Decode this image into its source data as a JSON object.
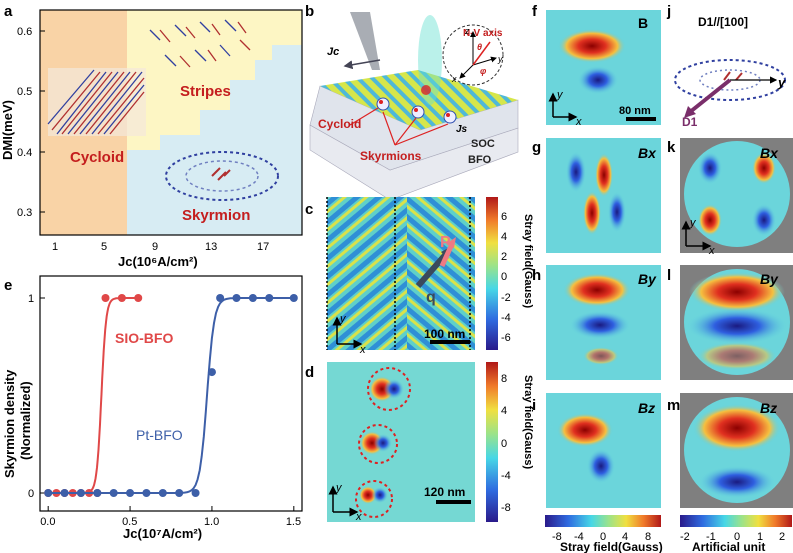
{
  "panels": {
    "a": "a",
    "b": "b",
    "c": "c",
    "d": "d",
    "e": "e",
    "f": "f",
    "g": "g",
    "h": "h",
    "i": "i",
    "j": "j",
    "k": "k",
    "l": "l",
    "m": "m"
  },
  "phase_diagram": {
    "ylabel": "DMI(meV)",
    "xlabel": "Jc(10⁶A/cm²)",
    "yticks": [
      "0.3",
      "0.4",
      "0.5",
      "0.6"
    ],
    "xticks": [
      "1",
      "5",
      "9",
      "13",
      "17"
    ],
    "regions": [
      "Cycloid",
      "Stripes",
      "Skyrmion"
    ],
    "colors": {
      "cycloid": "#f9d3a6",
      "stripes": "#fdf6c4",
      "skyrmion": "#d7ecf3"
    }
  },
  "schematic": {
    "jc": "Jc",
    "js": "Js",
    "nv_axis": "N-V axis",
    "theta": "θ",
    "phi": "φ",
    "cycloid": "Cycloid",
    "skyrmions": "Skyrmions",
    "soc": "SOC",
    "bfo": "BFO",
    "axis_x": "x",
    "axis_y": "y",
    "axis_z": "z"
  },
  "map_c": {
    "colorbar_label": "Stray field(Gauss)",
    "ticks": [
      "6",
      "4",
      "2",
      "0",
      "-2",
      "-4",
      "-6"
    ],
    "scale": "100 nm",
    "p": "P",
    "q": "q"
  },
  "map_d": {
    "colorbar_label": "Stray field(Gauss)",
    "ticks": [
      "8",
      "4",
      "0",
      "-4",
      "-8"
    ],
    "scale": "120 nm"
  },
  "chart_data": {
    "type": "line",
    "xlabel": "Jc(10⁷A/cm²)",
    "ylabel": "Skyrmion density (Normalized)",
    "xlim": [
      -0.05,
      1.55
    ],
    "ylim": [
      0,
      1
    ],
    "xticks": [
      "0.0",
      "0.5",
      "1.0",
      "1.5"
    ],
    "yticks": [
      "0",
      "1"
    ],
    "series": [
      {
        "name": "SIO-BFO",
        "color": "#e04848",
        "x": [
          0,
          0.05,
          0.1,
          0.15,
          0.2,
          0.25,
          0.3,
          0.35,
          0.45,
          0.55
        ],
        "y": [
          0,
          0,
          0,
          0,
          0,
          0,
          0,
          1,
          1,
          1
        ]
      },
      {
        "name": "Pt-BFO",
        "color": "#3d5fa8",
        "x": [
          0,
          0.1,
          0.2,
          0.3,
          0.4,
          0.5,
          0.6,
          0.7,
          0.8,
          0.9,
          1.0,
          1.05,
          1.15,
          1.25,
          1.35,
          1.5
        ],
        "y": [
          0,
          0,
          0,
          0,
          0,
          0,
          0,
          0,
          0,
          0,
          0.62,
          1,
          1,
          1,
          1,
          1
        ]
      }
    ]
  },
  "sim": {
    "f_label": "B",
    "g_label": "Bx",
    "h_label": "By",
    "i_label": "Bz",
    "scale_f": "80 nm",
    "j_title": "D1//[100]",
    "j_d1": "D1",
    "k_label": "Bx",
    "l_label": "By",
    "m_label": "Bz",
    "cb_left_label": "Stray field(Gauss)",
    "cb_left_ticks": [
      "-8",
      "-4",
      "0",
      "4",
      "8"
    ],
    "cb_right_label": "Artificial unit",
    "cb_right_ticks": [
      "-2",
      "-1",
      "0",
      "1",
      "2"
    ]
  }
}
